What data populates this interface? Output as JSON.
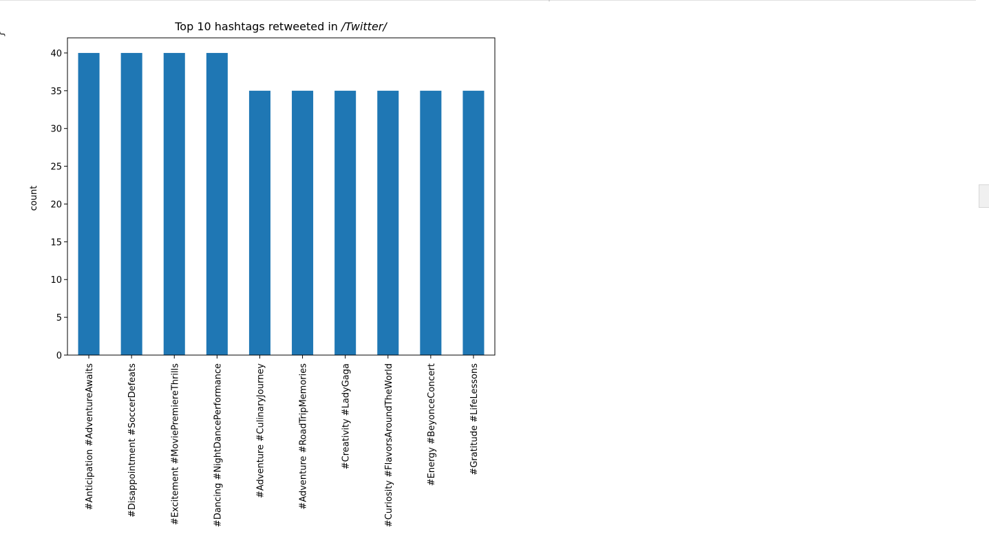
{
  "output": {
    "left_glyph": "{"
  },
  "chart_data": {
    "type": "bar",
    "title_prefix": "Top 10 hashtags retweeted in ",
    "title_emph": "/Twitter/",
    "xlabel": "",
    "ylabel": "count",
    "ylim": [
      0,
      42
    ],
    "yticks": [
      0,
      5,
      10,
      15,
      20,
      25,
      30,
      35,
      40
    ],
    "categories": [
      "#Anticipation #AdventureAwaits",
      "#Disappointment #SoccerDefeats",
      "#Excitement #MoviePremiereThrills",
      "#Dancing #NightDancePerformance",
      "#Adventure #CulinaryJourney",
      "#Adventure #RoadTripMemories",
      "#Creativity #LadyGaga",
      "#Curiosity #FlavorsAroundTheWorld",
      "#Energy #BeyonceConcert",
      "#Gratitude #LifeLessons"
    ],
    "values": [
      40,
      40,
      40,
      40,
      35,
      35,
      35,
      35,
      35,
      35
    ],
    "bar_color": "#1f77b4",
    "grid": false,
    "legend": false
  }
}
